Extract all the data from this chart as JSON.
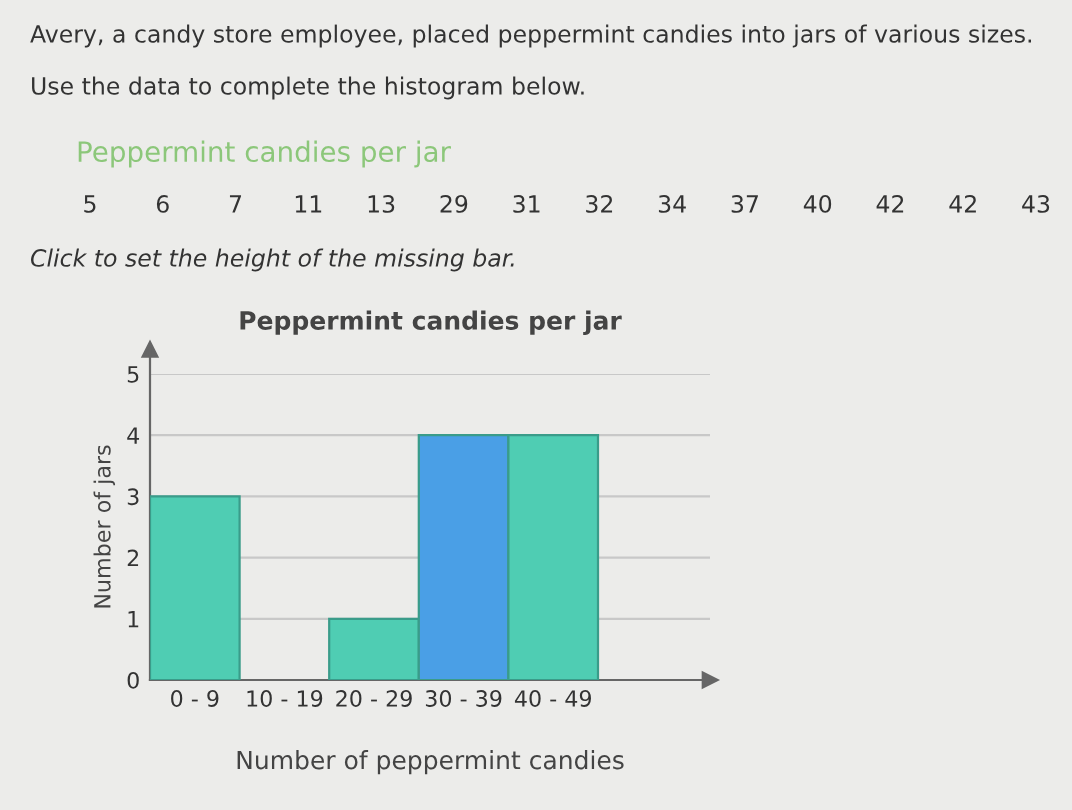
{
  "chart_data": {
    "type": "bar",
    "title": "Peppermint candies per jar",
    "xlabel": "Number of peppermint candies",
    "ylabel": "Number of jars",
    "categories": [
      "0 - 9",
      "10 - 19",
      "20 - 29",
      "30 - 39",
      "40 - 49"
    ],
    "values": [
      3,
      null,
      1,
      4,
      4
    ],
    "colors": [
      "#4fcdb3",
      "#4fcdb3",
      "#4fcdb3",
      "#4a9fe6",
      "#4fcdb3"
    ],
    "ylim": [
      0,
      5
    ],
    "yticks": [
      0,
      1,
      2,
      3,
      4,
      5
    ],
    "grid": "y",
    "annotations": [
      "Avery, a candy store employee, placed peppermint candies into jars of various sizes.",
      "Use the data to complete the histogram below.",
      "Peppermint candies per jar",
      "5",
      "6",
      "7",
      "11",
      "13",
      "29",
      "31",
      "32",
      "34",
      "37",
      "40",
      "42",
      "42",
      "43",
      "Click to set the height of the missing bar."
    ]
  }
}
